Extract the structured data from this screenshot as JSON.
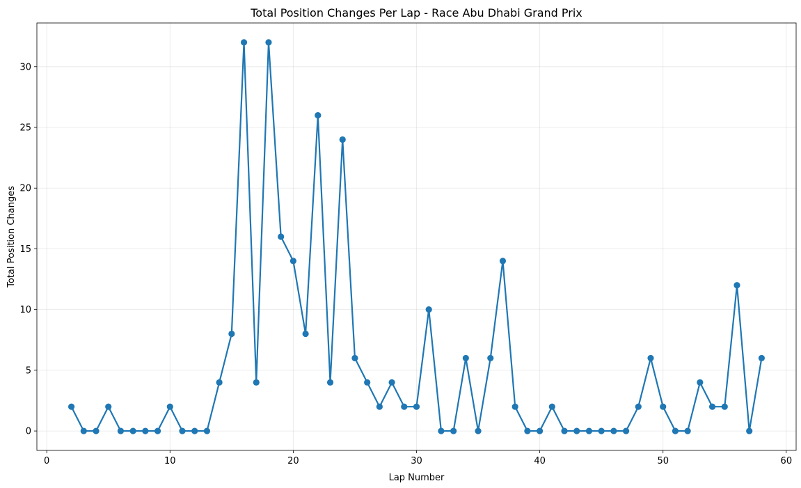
{
  "chart_data": {
    "type": "line",
    "title": "Total Position Changes Per Lap - Race Abu Dhabi Grand Prix",
    "xlabel": "Lap Number",
    "ylabel": "Total Position Changes",
    "xlim": [
      -0.8,
      60.8
    ],
    "ylim": [
      -1.6,
      33.6
    ],
    "xticks": [
      0,
      10,
      20,
      30,
      40,
      50,
      60
    ],
    "yticks": [
      0,
      5,
      10,
      15,
      20,
      25,
      30
    ],
    "grid": true,
    "marker": "circle",
    "line_color": "#1f77b4",
    "x": [
      2,
      3,
      4,
      5,
      6,
      7,
      8,
      9,
      10,
      11,
      12,
      13,
      14,
      15,
      16,
      17,
      18,
      19,
      20,
      21,
      22,
      23,
      24,
      25,
      26,
      27,
      28,
      29,
      30,
      31,
      32,
      33,
      34,
      35,
      36,
      37,
      38,
      39,
      40,
      41,
      42,
      43,
      44,
      45,
      46,
      47,
      48,
      49,
      50,
      51,
      52,
      53,
      54,
      55,
      56,
      57,
      58
    ],
    "series": [
      {
        "values": [
          2,
          0,
          0,
          2,
          0,
          0,
          0,
          0,
          2,
          0,
          0,
          0,
          4,
          8,
          32,
          4,
          32,
          16,
          14,
          8,
          26,
          4,
          24,
          6,
          4,
          2,
          4,
          2,
          2,
          10,
          0,
          0,
          6,
          0,
          6,
          14,
          2,
          0,
          0,
          2,
          0,
          0,
          0,
          0,
          0,
          0,
          2,
          6,
          2,
          0,
          0,
          4,
          2,
          2,
          12,
          0,
          6
        ]
      }
    ]
  }
}
